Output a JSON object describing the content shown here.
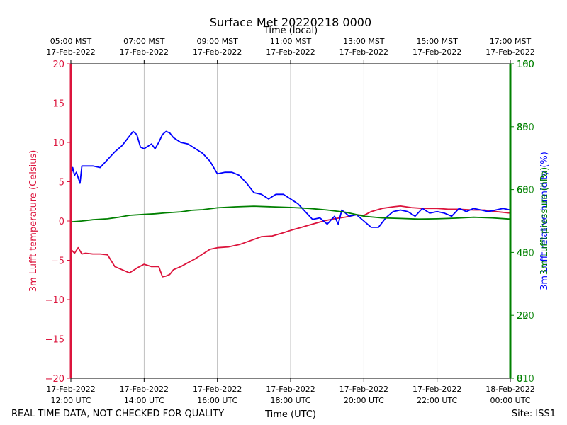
{
  "chart_data": {
    "type": "line",
    "title": "Surface Met 20220218 0000",
    "top_axis_label": "Time (local)",
    "xlabel": "Time (UTC)",
    "ylabel_left": "3m Lufft temperature (Celsius)",
    "ylabel_right_1": "3m Lufft relative humidity (%)",
    "ylabel_right_2": "3m Lufft pressure (hPa)",
    "footer_left": "REAL TIME DATA, NOT CHECKED FOR QUALITY",
    "footer_right": "Site: ISS1",
    "x_range": [
      12,
      24
    ],
    "ylim_left": [
      -20,
      20
    ],
    "ylim_right": [
      0,
      100
    ],
    "grid": "vertical",
    "colors": {
      "temperature": "#dc143c",
      "humidity": "#0000ff",
      "pressure": "#008000",
      "axis_left": "#dc143c",
      "axis_right": "#008000",
      "grid": "#b0b0b0"
    },
    "yticks_left": [
      "20",
      "15",
      "10",
      "5",
      "0",
      "−5",
      "−10",
      "−15",
      "−20"
    ],
    "yticks_right": [
      {
        "a": "100",
        "b": "160"
      },
      {
        "a": "80",
        "b": "850"
      },
      {
        "a": "60",
        "b": "680"
      },
      {
        "a": "40",
        "b": "430"
      },
      {
        "a": "20",
        "b": "220"
      },
      {
        "a": "0",
        "b": "810"
      }
    ],
    "xticks_bottom": [
      {
        "date": "17-Feb-2022",
        "time": "12:00 UTC"
      },
      {
        "date": "17-Feb-2022",
        "time": "14:00 UTC"
      },
      {
        "date": "17-Feb-2022",
        "time": "16:00 UTC"
      },
      {
        "date": "17-Feb-2022",
        "time": "18:00 UTC"
      },
      {
        "date": "17-Feb-2022",
        "time": "20:00 UTC"
      },
      {
        "date": "17-Feb-2022",
        "time": "22:00 UTC"
      },
      {
        "date": "18-Feb-2022",
        "time": "00:00 UTC"
      }
    ],
    "xticks_top": [
      {
        "time": "05:00 MST",
        "date": "17-Feb-2022"
      },
      {
        "time": "07:00 MST",
        "date": "17-Feb-2022"
      },
      {
        "time": "09:00 MST",
        "date": "17-Feb-2022"
      },
      {
        "time": "11:00 MST",
        "date": "17-Feb-2022"
      },
      {
        "time": "13:00 MST",
        "date": "17-Feb-2022"
      },
      {
        "time": "15:00 MST",
        "date": "17-Feb-2022"
      },
      {
        "time": "17:00 MST",
        "date": "17-Feb-2022"
      }
    ],
    "series": [
      {
        "name": "temperature",
        "axis": "left",
        "x": [
          12.0,
          12.1,
          12.2,
          12.3,
          12.4,
          12.6,
          12.8,
          13.0,
          13.2,
          13.4,
          13.6,
          13.8,
          14.0,
          14.2,
          14.4,
          14.5,
          14.6,
          14.7,
          14.8,
          15.0,
          15.2,
          15.4,
          15.6,
          15.8,
          16.0,
          16.3,
          16.6,
          16.9,
          17.2,
          17.5,
          17.8,
          18.0,
          18.3,
          18.6,
          18.9,
          19.2,
          19.5,
          19.8,
          20.0,
          20.2,
          20.5,
          20.8,
          21.0,
          21.3,
          21.6,
          22.0,
          22.3,
          22.6,
          23.0,
          23.3,
          23.6,
          24.0
        ],
        "y": [
          -3.6,
          -4.1,
          -3.4,
          -4.2,
          -4.1,
          -4.2,
          -4.2,
          -4.3,
          -5.8,
          -6.2,
          -6.6,
          -6.0,
          -5.5,
          -5.8,
          -5.8,
          -7.1,
          -7.0,
          -6.8,
          -6.2,
          -5.8,
          -5.3,
          -4.8,
          -4.2,
          -3.6,
          -3.4,
          -3.3,
          -3.0,
          -2.5,
          -2.0,
          -1.9,
          -1.5,
          -1.2,
          -0.8,
          -0.4,
          0.0,
          0.3,
          0.5,
          0.8,
          0.7,
          1.2,
          1.6,
          1.8,
          1.9,
          1.7,
          1.6,
          1.6,
          1.5,
          1.5,
          1.4,
          1.4,
          1.2,
          1.0
        ]
      },
      {
        "name": "relative humidity",
        "axis": "right",
        "x": [
          12.0,
          12.05,
          12.1,
          12.15,
          12.25,
          12.3,
          12.4,
          12.6,
          12.8,
          13.0,
          13.2,
          13.4,
          13.6,
          13.7,
          13.8,
          13.9,
          14.0,
          14.2,
          14.3,
          14.4,
          14.5,
          14.6,
          14.7,
          14.8,
          15.0,
          15.2,
          15.4,
          15.6,
          15.8,
          16.0,
          16.2,
          16.4,
          16.6,
          16.8,
          17.0,
          17.2,
          17.4,
          17.6,
          17.8,
          18.0,
          18.2,
          18.4,
          18.6,
          18.8,
          19.0,
          19.2,
          19.3,
          19.4,
          19.6,
          19.8,
          20.0,
          20.2,
          20.4,
          20.6,
          20.8,
          21.0,
          21.2,
          21.4,
          21.6,
          21.8,
          22.0,
          22.2,
          22.4,
          22.6,
          22.8,
          23.0,
          23.2,
          23.4,
          23.6,
          23.8,
          24.0
        ],
        "y": [
          64.0,
          67.0,
          64.5,
          65.5,
          62.0,
          67.5,
          67.5,
          67.5,
          67.0,
          69.5,
          72.0,
          74.0,
          77.0,
          78.5,
          77.5,
          73.5,
          73.0,
          74.5,
          73.0,
          75.0,
          77.5,
          78.5,
          78.0,
          76.5,
          75.0,
          74.5,
          73.0,
          71.5,
          69.0,
          65.0,
          65.5,
          65.5,
          64.5,
          62.0,
          59.0,
          58.5,
          57.0,
          58.5,
          58.5,
          57.0,
          55.5,
          53.0,
          50.5,
          51.0,
          49.0,
          51.5,
          49.0,
          53.5,
          51.5,
          52.0,
          50.0,
          48.0,
          48.0,
          51.0,
          53.0,
          53.5,
          53.0,
          51.5,
          54.0,
          52.5,
          53.0,
          52.5,
          51.5,
          54.0,
          53.0,
          54.0,
          53.5,
          53.0,
          53.5,
          54.0,
          53.5
        ]
      },
      {
        "name": "pressure",
        "axis": "right",
        "x": [
          12.0,
          12.3,
          12.6,
          13.0,
          13.3,
          13.6,
          14.0,
          14.3,
          14.6,
          15.0,
          15.3,
          15.6,
          16.0,
          16.5,
          17.0,
          17.5,
          18.0,
          18.5,
          19.0,
          19.5,
          20.0,
          20.5,
          21.0,
          21.5,
          22.0,
          22.5,
          23.0,
          23.5,
          24.0
        ],
        "y": [
          49.7,
          50.0,
          50.4,
          50.7,
          51.2,
          51.8,
          52.1,
          52.3,
          52.6,
          52.9,
          53.4,
          53.6,
          54.2,
          54.5,
          54.7,
          54.5,
          54.3,
          54.0,
          53.5,
          52.8,
          51.5,
          51.0,
          50.8,
          50.6,
          50.7,
          50.9,
          51.2,
          51.0,
          50.6
        ]
      }
    ]
  }
}
